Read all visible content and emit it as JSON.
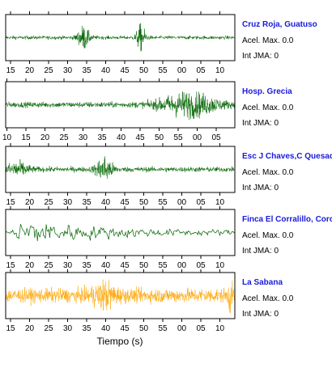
{
  "chart_data": {
    "type": "line",
    "xlabel": "Tiempo (s)",
    "ylabel": "",
    "title": "",
    "grid": false,
    "panels": [
      {
        "station": "Cruz Roja, Guatuso",
        "acel_label": "Acel. Max. 0.0",
        "jma_label": "Int JMA: 0",
        "color": "#006400",
        "tick_labels": [
          "15",
          "20",
          "25",
          "30",
          "35",
          "40",
          "45",
          "50",
          "55",
          "00",
          "05",
          "10"
        ],
        "tick_start": 0.5,
        "bursts": [
          {
            "at": 0.34,
            "amp": 0.85,
            "width": 0.025
          },
          {
            "at": 0.59,
            "amp": 0.95,
            "width": 0.02
          }
        ],
        "noise": 0.14,
        "style": "fine"
      },
      {
        "station": "Hosp. Grecia",
        "acel_label": "Acel. Max. 0.0",
        "jma_label": "Int JMA: 0",
        "color": "#006400",
        "tick_labels": [
          "10",
          "15",
          "20",
          "25",
          "30",
          "35",
          "40",
          "45",
          "50",
          "55",
          "00",
          "05"
        ],
        "tick_start": 0.0,
        "bursts": [
          {
            "at": 0.8,
            "amp": 0.9,
            "width": 0.12
          }
        ],
        "noise": 0.22,
        "style": "fine"
      },
      {
        "station": "Esc J Chaves,C Quesada",
        "acel_label": "Acel. Max. 0.0",
        "jma_label": "Int JMA: 0",
        "color": "#006400",
        "tick_labels": [
          "15",
          "20",
          "25",
          "30",
          "35",
          "40",
          "45",
          "50",
          "55",
          "00",
          "05",
          "10"
        ],
        "tick_start": 0.5,
        "bursts": [
          {
            "at": 0.05,
            "amp": 0.5,
            "width": 0.05
          },
          {
            "at": 0.43,
            "amp": 0.95,
            "width": 0.035
          }
        ],
        "noise": 0.2,
        "style": "fine"
      },
      {
        "station": "Finca El Corralillo, Coronado",
        "acel_label": "Acel. Max. 0.0",
        "jma_label": "Int JMA: 0",
        "color": "#006400",
        "tick_labels": [
          "15",
          "20",
          "25",
          "30",
          "35",
          "40",
          "45",
          "50",
          "55",
          "00",
          "05",
          "10"
        ],
        "tick_start": 0.5,
        "bursts": [
          {
            "at": 0.05,
            "amp": 0.95,
            "width": 0.3
          }
        ],
        "noise": 0.15,
        "style": "coarse"
      },
      {
        "station": "La Sabana",
        "acel_label": "Acel. Max. 0.0",
        "jma_label": "Int JMA: 0",
        "color": "#FFA500",
        "tick_labels": [
          "15",
          "20",
          "25",
          "30",
          "35",
          "40",
          "45",
          "50",
          "55",
          "00",
          "05",
          "10"
        ],
        "tick_start": 0.5,
        "bursts": [
          {
            "at": 0.43,
            "amp": 0.75,
            "width": 0.05
          },
          {
            "at": 0.98,
            "amp": 0.95,
            "width": 0.01
          }
        ],
        "noise": 0.55,
        "style": "fine"
      }
    ]
  }
}
